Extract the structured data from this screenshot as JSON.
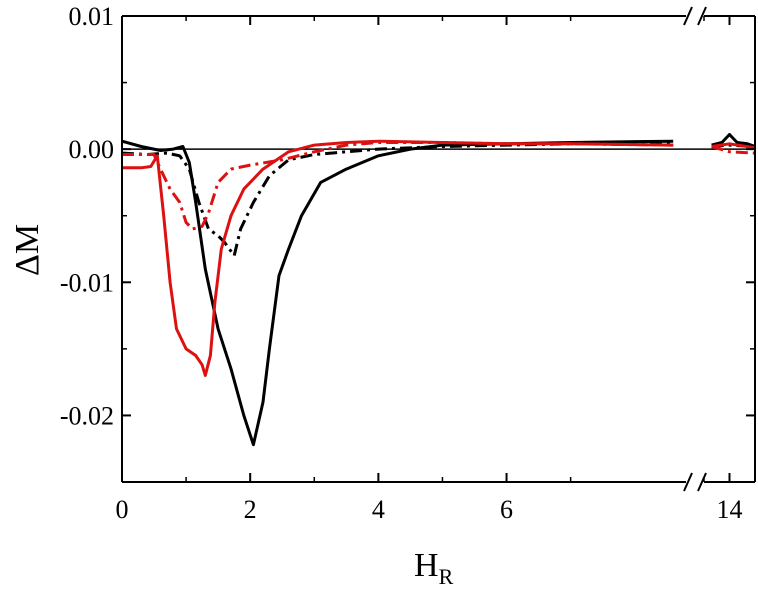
{
  "chart_data": {
    "type": "line",
    "xlabel": "H",
    "xlabel_sub": "R",
    "ylabel": "ΔM",
    "xlim_main": [
      0,
      8.8
    ],
    "xlim_break": [
      13,
      15
    ],
    "ylim": [
      -0.025,
      0.01
    ],
    "x_ticks": [
      {
        "value": 0,
        "label": "0"
      },
      {
        "value": 2,
        "label": "2"
      },
      {
        "value": 4,
        "label": "4"
      },
      {
        "value": 6,
        "label": "6"
      },
      {
        "value": 14,
        "label": "14"
      }
    ],
    "y_ticks": [
      {
        "value": 0.01,
        "label": "0.01"
      },
      {
        "value": 0.0,
        "label": "0.00"
      },
      {
        "value": -0.01,
        "label": "-0.01"
      },
      {
        "value": -0.02,
        "label": "-0.02"
      }
    ],
    "reference_line": 0,
    "series": [
      {
        "color": "#000000",
        "dash": "solid",
        "points": [
          [
            0,
            0.0006
          ],
          [
            0.3,
            0.0002
          ],
          [
            0.6,
            -0.0001
          ],
          [
            0.8,
            0.0
          ],
          [
            0.95,
            0.0002
          ],
          [
            1.05,
            -0.001
          ],
          [
            1.15,
            -0.004
          ],
          [
            1.3,
            -0.009
          ],
          [
            1.5,
            -0.0135
          ],
          [
            1.7,
            -0.0165
          ],
          [
            1.9,
            -0.02
          ],
          [
            2.05,
            -0.0222
          ],
          [
            2.2,
            -0.019
          ],
          [
            2.3,
            -0.015
          ],
          [
            2.45,
            -0.0095
          ],
          [
            2.6,
            -0.0075
          ],
          [
            2.8,
            -0.005
          ],
          [
            3.1,
            -0.0025
          ],
          [
            3.5,
            -0.0015
          ],
          [
            4.0,
            -0.0005
          ],
          [
            4.5,
            0.0
          ],
          [
            5.0,
            0.0003
          ],
          [
            6.0,
            0.0004
          ],
          [
            7.0,
            0.0005
          ],
          [
            8.6,
            0.0006
          ],
          [
            13.3,
            0.0003
          ],
          [
            13.7,
            0.0005
          ],
          [
            14.0,
            0.0011
          ],
          [
            14.3,
            0.0005
          ],
          [
            14.7,
            0.0004
          ],
          [
            15.0,
            0.0002
          ]
        ]
      },
      {
        "color": "#000000",
        "dash": "dashdot",
        "points": [
          [
            0,
            -0.0003
          ],
          [
            0.4,
            -0.0004
          ],
          [
            0.7,
            -0.0003
          ],
          [
            0.9,
            -0.0005
          ],
          [
            1.05,
            -0.0015
          ],
          [
            1.2,
            -0.004
          ],
          [
            1.35,
            -0.006
          ],
          [
            1.5,
            -0.0065
          ],
          [
            1.6,
            -0.007
          ],
          [
            1.75,
            -0.008
          ],
          [
            1.85,
            -0.006
          ],
          [
            2.05,
            -0.004
          ],
          [
            2.3,
            -0.002
          ],
          [
            2.6,
            -0.0008
          ],
          [
            3.0,
            -0.0004
          ],
          [
            3.5,
            -0.0002
          ],
          [
            4.0,
            0.0
          ],
          [
            5.0,
            0.0002
          ],
          [
            6.0,
            0.0003
          ],
          [
            7.0,
            0.0004
          ],
          [
            8.6,
            0.0004
          ],
          [
            13.3,
            0.0002
          ],
          [
            14.0,
            0.0003
          ],
          [
            15.0,
            0.0002
          ]
        ]
      },
      {
        "color": "#dd1111",
        "dash": "solid",
        "points": [
          [
            0,
            -0.0014
          ],
          [
            0.3,
            -0.0014
          ],
          [
            0.45,
            -0.0013
          ],
          [
            0.55,
            -0.0005
          ],
          [
            0.65,
            -0.005
          ],
          [
            0.75,
            -0.01
          ],
          [
            0.85,
            -0.0135
          ],
          [
            1.0,
            -0.015
          ],
          [
            1.15,
            -0.0155
          ],
          [
            1.25,
            -0.0162
          ],
          [
            1.3,
            -0.017
          ],
          [
            1.38,
            -0.0155
          ],
          [
            1.45,
            -0.0115
          ],
          [
            1.55,
            -0.0075
          ],
          [
            1.7,
            -0.005
          ],
          [
            1.9,
            -0.003
          ],
          [
            2.2,
            -0.0015
          ],
          [
            2.6,
            -0.0002
          ],
          [
            3.0,
            0.0003
          ],
          [
            3.5,
            0.0005
          ],
          [
            4.0,
            0.0006
          ],
          [
            5.0,
            0.0005
          ],
          [
            6.0,
            0.0004
          ],
          [
            7.0,
            0.0004
          ],
          [
            8.6,
            0.0003
          ],
          [
            13.3,
            0.0002
          ],
          [
            14.0,
            0.0004
          ],
          [
            15.0,
            0.0001
          ]
        ]
      },
      {
        "color": "#dd1111",
        "dash": "dashdot",
        "points": [
          [
            0,
            -0.0004
          ],
          [
            0.5,
            -0.0004
          ],
          [
            0.6,
            -0.0015
          ],
          [
            0.75,
            -0.003
          ],
          [
            0.9,
            -0.004
          ],
          [
            1.0,
            -0.0055
          ],
          [
            1.1,
            -0.006
          ],
          [
            1.25,
            -0.0058
          ],
          [
            1.35,
            -0.0048
          ],
          [
            1.5,
            -0.0025
          ],
          [
            1.7,
            -0.0015
          ],
          [
            2.0,
            -0.0012
          ],
          [
            2.5,
            -0.0008
          ],
          [
            3.0,
            -0.0002
          ],
          [
            3.5,
            0.0003
          ],
          [
            4.0,
            0.0005
          ],
          [
            5.0,
            0.0005
          ],
          [
            6.0,
            0.0004
          ],
          [
            7.0,
            0.0004
          ],
          [
            8.6,
            0.0003
          ],
          [
            13.3,
            0.0002
          ],
          [
            14.0,
            -0.0002
          ],
          [
            15.0,
            -0.0003
          ]
        ]
      }
    ]
  }
}
